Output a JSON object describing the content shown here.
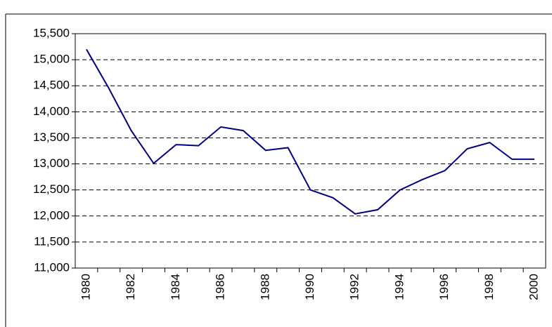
{
  "chart_data": {
    "type": "line",
    "categories": [
      "1980",
      null,
      "1982",
      null,
      "1984",
      null,
      "1986",
      null,
      "1988",
      null,
      "1990",
      null,
      "1992",
      null,
      "1994",
      null,
      "1996",
      null,
      "1998",
      null,
      "2000"
    ],
    "series": [
      {
        "color": "#000080",
        "values": [
          15200,
          14450,
          13640,
          13010,
          13370,
          13350,
          13710,
          13640,
          13260,
          13310,
          12500,
          12350,
          12040,
          12120,
          12500,
          12700,
          12870,
          13290,
          13410,
          13090,
          13090
        ]
      }
    ],
    "ylim": [
      11000,
      15500
    ],
    "yticks": [
      {
        "value": 11000,
        "label": "11,000"
      },
      {
        "value": 11500,
        "label": "11,500"
      },
      {
        "value": 12000,
        "label": "12,000"
      },
      {
        "value": 12500,
        "label": "12,500"
      },
      {
        "value": 13000,
        "label": "13,000"
      },
      {
        "value": 13500,
        "label": "13,500"
      },
      {
        "value": 14000,
        "label": "14,000"
      },
      {
        "value": 14500,
        "label": "14,500"
      },
      {
        "value": 15000,
        "label": "15,000"
      },
      {
        "value": 15500,
        "label": "15,500"
      }
    ],
    "grid": true
  }
}
